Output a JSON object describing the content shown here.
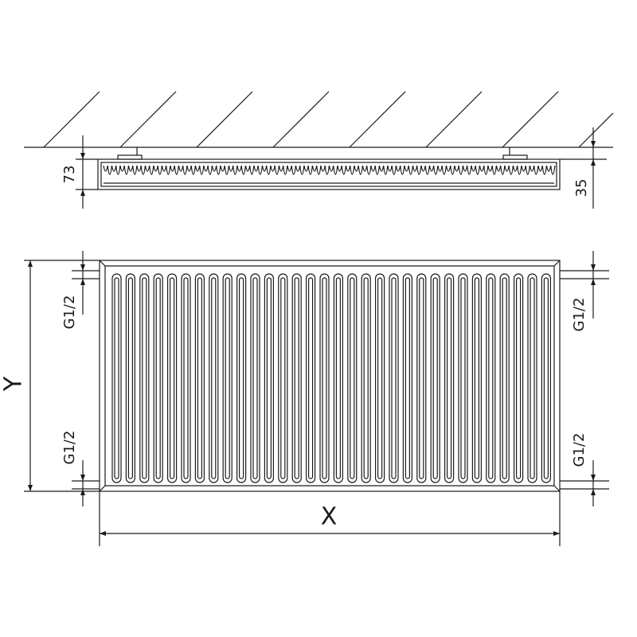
{
  "top_view": {
    "depth_label": 73,
    "offset_label": 35
  },
  "front_view": {
    "connections": [
      "G1/2",
      "G1/2",
      "G1/2",
      "G1/2"
    ],
    "height_label": "Y",
    "width_label": "X"
  }
}
